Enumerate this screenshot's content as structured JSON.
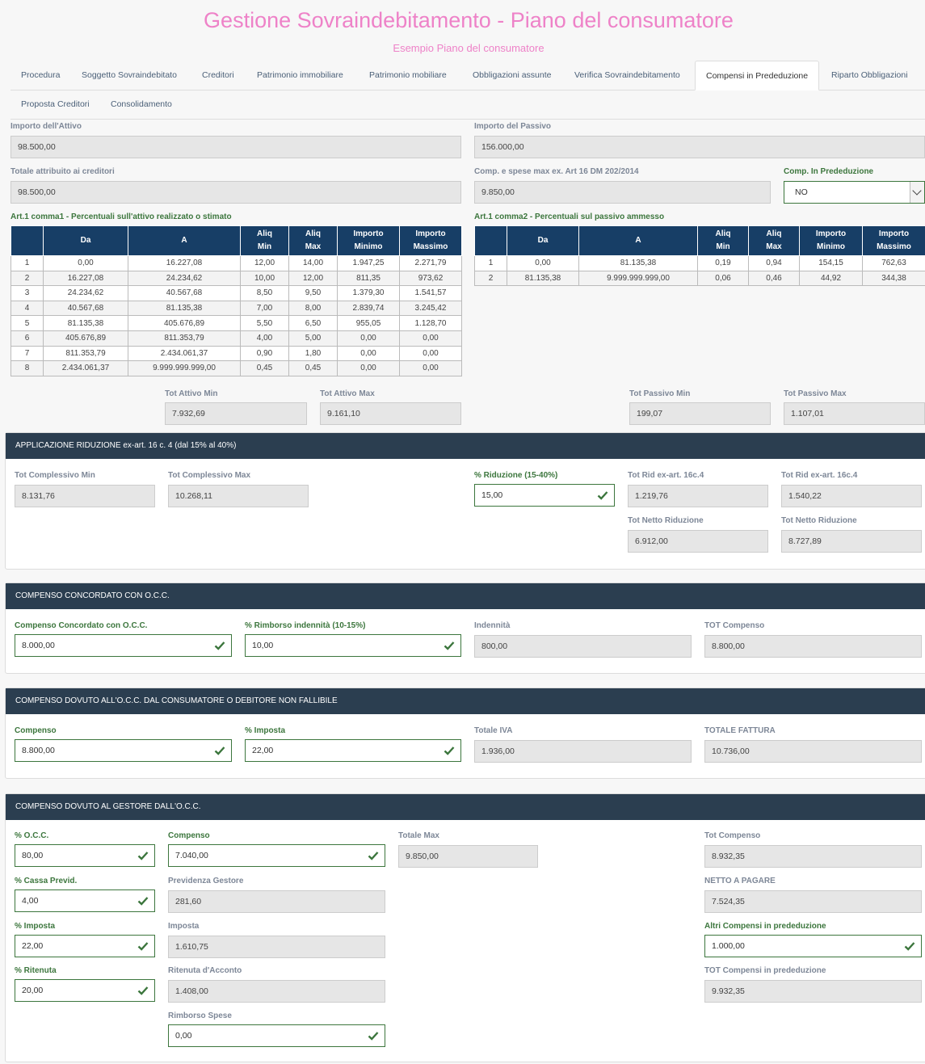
{
  "header": {
    "title": "Gestione Sovraindebitamento - Piano del consumatore",
    "subtitle": "Esempio Piano del consumatore"
  },
  "tabs": [
    {
      "label": "Procedura"
    },
    {
      "label": "Soggetto Sovraindebitato"
    },
    {
      "label": "Creditori"
    },
    {
      "label": "Patrimonio immobiliare"
    },
    {
      "label": "Patrimonio mobiliare"
    },
    {
      "label": "Obbligazioni assunte"
    },
    {
      "label": "Verifica Sovraindebitamento"
    },
    {
      "label": "Compensi in Prededuzione"
    },
    {
      "label": "Riparto Obbligazioni"
    },
    {
      "label": "Proposta Creditori"
    },
    {
      "label": "Consolidamento"
    }
  ],
  "summary": {
    "attivo_label": "Importo dell'Attivo",
    "attivo_value": "98.500,00",
    "passivo_label": "Importo del Passivo",
    "passivo_value": "156.000,00",
    "totale_label": "Totale attribuito ai creditori",
    "totale_value": "98.500,00",
    "comp_spese_label": "Comp. e spese max ex. Art 16 DM 202/2014",
    "comp_spese_value": "9.850,00",
    "comp_pred_label": "Comp. In Prededuzione",
    "comp_pred_value": "NO"
  },
  "table1": {
    "caption": "Art.1 comma1 - Percentuali sull'attivo realizzato o stimato",
    "headers": [
      "",
      "Da",
      "A",
      "Aliq\nMin",
      "Aliq\nMax",
      "Importo\nMinimo",
      "Importo\nMassimo"
    ],
    "rows": [
      [
        "1",
        "0,00",
        "16.227,08",
        "12,00",
        "14,00",
        "1.947,25",
        "2.271,79"
      ],
      [
        "2",
        "16.227,08",
        "24.234,62",
        "10,00",
        "12,00",
        "811,35",
        "973,62"
      ],
      [
        "3",
        "24.234,62",
        "40.567,68",
        "8,50",
        "9,50",
        "1.379,30",
        "1.541,57"
      ],
      [
        "4",
        "40.567,68",
        "81.135,38",
        "7,00",
        "8,00",
        "2.839,74",
        "3.245,42"
      ],
      [
        "5",
        "81.135,38",
        "405.676,89",
        "5,50",
        "6,50",
        "955,05",
        "1.128,70"
      ],
      [
        "6",
        "405.676,89",
        "811.353,79",
        "4,00",
        "5,00",
        "0,00",
        "0,00"
      ],
      [
        "7",
        "811.353,79",
        "2.434.061,37",
        "0,90",
        "1,80",
        "0,00",
        "0,00"
      ],
      [
        "8",
        "2.434.061,37",
        "9.999.999.999,00",
        "0,45",
        "0,45",
        "0,00",
        "0,00"
      ]
    ],
    "tot_min_label": "Tot Attivo Min",
    "tot_min_value": "7.932,69",
    "tot_max_label": "Tot Attivo Max",
    "tot_max_value": "9.161,10"
  },
  "table2": {
    "caption": "Art.1 comma2 - Percentuali sul passivo ammesso",
    "headers": [
      "",
      "Da",
      "A",
      "Aliq\nMin",
      "Aliq\nMax",
      "Importo\nMinimo",
      "Importo\nMassimo"
    ],
    "rows": [
      [
        "1",
        "0,00",
        "81.135,38",
        "0,19",
        "0,94",
        "154,15",
        "762,63"
      ],
      [
        "2",
        "81.135,38",
        "9.999.999.999,00",
        "0,06",
        "0,46",
        "44,92",
        "344,38"
      ]
    ],
    "tot_min_label": "Tot Passivo Min",
    "tot_min_value": "199,07",
    "tot_max_label": "Tot Passivo Max",
    "tot_max_value": "1.107,01"
  },
  "riduzione": {
    "heading": "APPLICAZIONE RIDUZIONE ex-art. 16 c. 4 (dal 15% al 40%)",
    "tot_min_label": "Tot Complessivo Min",
    "tot_min_value": "8.131,76",
    "tot_max_label": "Tot Complessivo Max",
    "tot_max_value": "10.268,11",
    "perc_label": "% Riduzione (15-40%)",
    "perc_value": "15,00",
    "rid_min_label": "Tot Rid ex-art. 16c.4",
    "rid_min_value": "1.219,76",
    "rid_max_label": "Tot Rid ex-art. 16c.4",
    "rid_max_value": "1.540,22",
    "netto_min_label": "Tot Netto Riduzione",
    "netto_min_value": "6.912,00",
    "netto_max_label": "Tot Netto Riduzione",
    "netto_max_value": "8.727,89"
  },
  "concordato": {
    "heading": "COMPENSO CONCORDATO CON O.C.C.",
    "comp_label": "Compenso Concordato con O.C.C.",
    "comp_value": "8.000,00",
    "rimb_label": "% Rimborso indennità (10-15%)",
    "rimb_value": "10,00",
    "ind_label": "Indennità",
    "ind_value": "800,00",
    "tot_label": "TOT Compenso",
    "tot_value": "8.800,00"
  },
  "dovuto": {
    "heading": "COMPENSO DOVUTO ALL'O.C.C. DAL CONSUMATORE O DEBITORE NON FALLIBILE",
    "comp_label": "Compenso",
    "comp_value": "8.800,00",
    "imposta_label": "% Imposta",
    "imposta_value": "22,00",
    "iva_label": "Totale IVA",
    "iva_value": "1.936,00",
    "fattura_label": "TOTALE FATTURA",
    "fattura_value": "10.736,00"
  },
  "gestore": {
    "heading": "COMPENSO DOVUTO AL GESTORE DALL'O.C.C.",
    "occ_label": "% O.C.C.",
    "occ_value": "80,00",
    "comp_label": "Compenso",
    "comp_value": "7.040,00",
    "totmax_label": "Totale Max",
    "totmax_value": "9.850,00",
    "totcomp_label": "Tot Compenso",
    "totcomp_value": "8.932,35",
    "cassa_label": "% Cassa Previd.",
    "cassa_value": "4,00",
    "prev_label": "Previdenza Gestore",
    "prev_value": "281,60",
    "netto_label": "NETTO A PAGARE",
    "netto_value": "7.524,35",
    "imp_label": "% Imposta",
    "imp_value": "22,00",
    "imposta_label": "Imposta",
    "imposta_value": "1.610,75",
    "altri_label": "Altri Compensi in prededuzione",
    "altri_value": "1.000,00",
    "rit_label": "% Ritenuta",
    "rit_value": "20,00",
    "ritacc_label": "Ritenuta d'Acconto",
    "ritacc_value": "1.408,00",
    "totpred_label": "TOT Compensi in prededuzione",
    "totpred_value": "9.932,35",
    "rimb_label": "Rimborso Spese",
    "rimb_value": "0,00"
  }
}
